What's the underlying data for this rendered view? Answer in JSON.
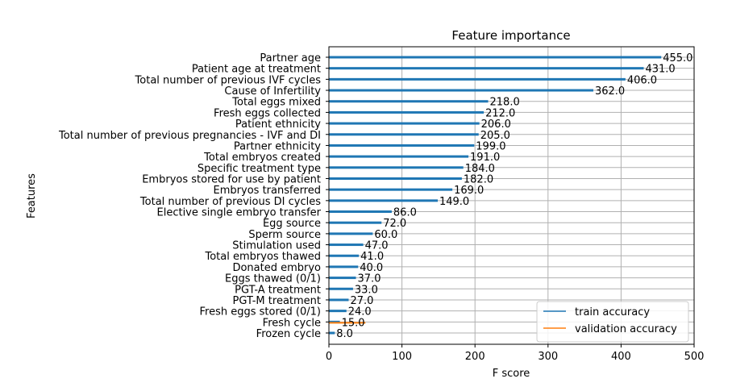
{
  "chart_data": {
    "type": "bar",
    "orientation": "horizontal",
    "title": "Feature importance",
    "xlabel": "F score",
    "ylabel": "Features",
    "xlim": [
      0,
      500
    ],
    "xticks": [
      "0",
      "100",
      "200",
      "300",
      "400",
      "500"
    ],
    "grid": true,
    "legend_position": "lower-right",
    "legend": [
      "train accuracy",
      "validation accuracy"
    ],
    "colors": {
      "train": "#1f77b4",
      "validation": "#ff7f0e",
      "grid": "#b0b0b0"
    },
    "categories": [
      "Partner age",
      "Patient age at treatment",
      "Total number of previous IVF cycles",
      "Cause of Infertility",
      "Total eggs mixed",
      "Fresh eggs collected",
      "Patient ethnicity",
      "Total number of previous pregnancies - IVF and DI",
      "Partner ethnicity",
      "Total embryos created",
      "Specific treatment type",
      "Embryos stored for use by patient",
      "Embryos transferred",
      "Total number of previous DI cycles",
      "Elective single embryo transfer",
      "Egg source",
      "Sperm source",
      "Stimulation used",
      "Total embryos thawed",
      "Donated embryo",
      "Eggs thawed (0/1)",
      "PGT-A treatment",
      "PGT-M treatment",
      "Fresh eggs stored (0/1)",
      "Fresh cycle",
      "Frozen cycle"
    ],
    "values": [
      455.0,
      431.0,
      406.0,
      362.0,
      218.0,
      212.0,
      206.0,
      205.0,
      199.0,
      191.0,
      184.0,
      182.0,
      169.0,
      149.0,
      86.0,
      72.0,
      60.0,
      47.0,
      41.0,
      40.0,
      37.0,
      33.0,
      27.0,
      24.0,
      15.0,
      8.0
    ],
    "value_labels": [
      "455.0",
      "431.0",
      "406.0",
      "362.0",
      "218.0",
      "212.0",
      "206.0",
      "205.0",
      "199.0",
      "191.0",
      "184.0",
      "182.0",
      "169.0",
      "149.0",
      "86.0",
      "72.0",
      "60.0",
      "47.0",
      "41.0",
      "40.0",
      "37.0",
      "33.0",
      "27.0",
      "24.0",
      "15.0",
      "8.0"
    ],
    "validation_segment": [
      0,
      50
    ]
  }
}
